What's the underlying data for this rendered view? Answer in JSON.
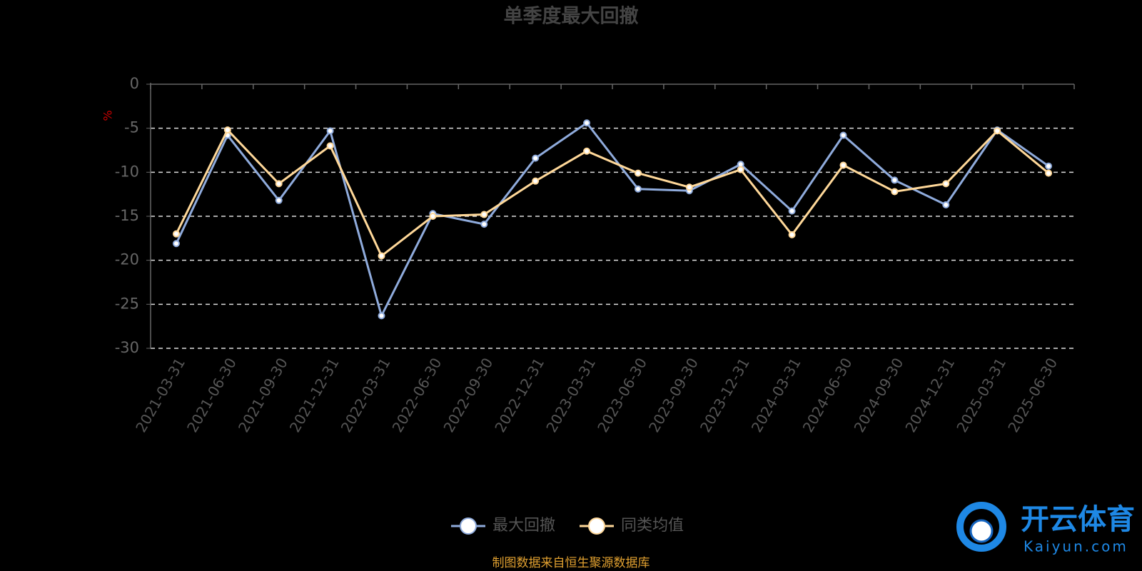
{
  "chart_data": {
    "type": "line",
    "title": "单季度最大回撤",
    "y_label": "%",
    "categories": [
      "2021-03-31",
      "2021-06-30",
      "2021-09-30",
      "2021-12-31",
      "2022-03-31",
      "2022-06-30",
      "2022-09-30",
      "2022-12-31",
      "2023-03-31",
      "2023-06-30",
      "2023-09-30",
      "2023-12-31",
      "2024-03-31",
      "2024-06-30",
      "2024-09-30",
      "2024-12-31",
      "2025-03-31",
      "2025-06-30"
    ],
    "series": [
      {
        "name": "最大回撤",
        "color": "#8fabdc",
        "values": [
          -18.1,
          -5.8,
          -13.2,
          -5.3,
          -26.3,
          -14.7,
          -15.9,
          -8.4,
          -4.4,
          -11.9,
          -12.1,
          -9.1,
          -14.4,
          -5.8,
          -10.9,
          -13.7,
          -5.2,
          -9.3
        ]
      },
      {
        "name": "同类均值",
        "color": "#ffd899",
        "values": [
          -17.0,
          -5.2,
          -11.3,
          -7.0,
          -19.5,
          -15.0,
          -14.8,
          -11.0,
          -7.6,
          -10.1,
          -11.7,
          -9.7,
          -17.1,
          -9.2,
          -12.2,
          -11.3,
          -5.3,
          -10.1
        ]
      }
    ],
    "ylim": [
      -30,
      0
    ],
    "yticks": [
      0,
      -5,
      -10,
      -15,
      -20,
      -25,
      -30
    ],
    "grid": true,
    "legend": "bottom",
    "source": "制图数据来自恒生聚源数据库",
    "watermark": {
      "brand": "开云体育",
      "site": "Kaiyun.com"
    }
  }
}
